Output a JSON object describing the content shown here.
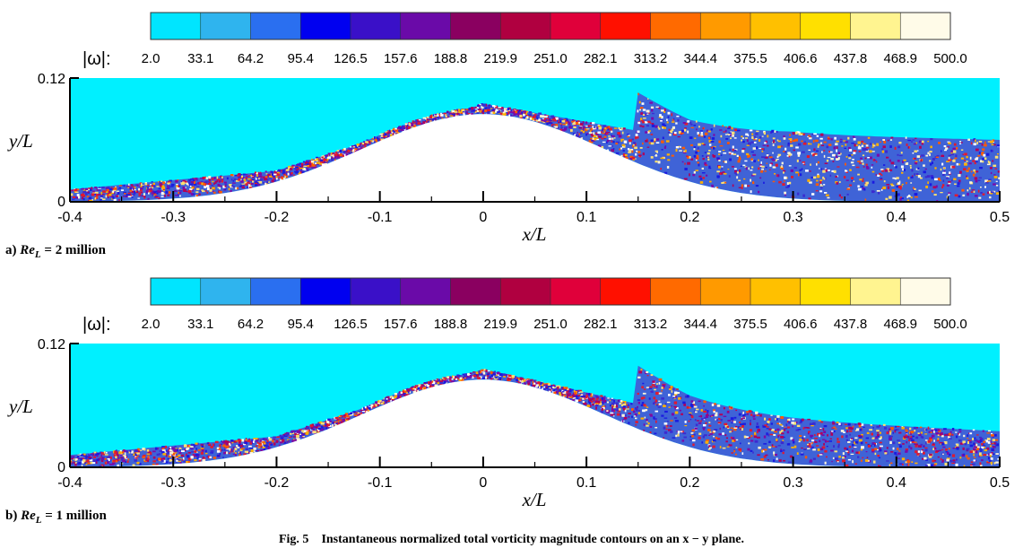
{
  "colorbar": {
    "label": "|ω|:",
    "ticks": [
      "2.0",
      "33.1",
      "64.2",
      "95.4",
      "126.5",
      "157.6",
      "188.8",
      "219.9",
      "251.0",
      "282.1",
      "313.2",
      "344.4",
      "375.5",
      "406.6",
      "437.8",
      "468.9",
      "500.0"
    ],
    "colors": [
      "#00e5ff",
      "#2fb4ee",
      "#2a6ff0",
      "#0000f0",
      "#3a10c8",
      "#6a0aa8",
      "#8a0060",
      "#b00040",
      "#e0003a",
      "#ff1000",
      "#ff6a00",
      "#ff9a00",
      "#ffc000",
      "#ffe000",
      "#fff490",
      "#fffbe8"
    ]
  },
  "caption": {
    "fig_number": "Fig. 5",
    "text": "Instantaneous normalized total vorticity magnitude contours on an x − y plane."
  },
  "chart_data": [
    {
      "type": "heatmap",
      "panel_label": "a)",
      "panel_re_symbol": "Re",
      "panel_re_sub": "L",
      "panel_re_value": "= 2 million",
      "xlabel": "x/L",
      "ylabel": "y/L",
      "xlim": [
        -0.4,
        0.5
      ],
      "ylim": [
        0,
        0.12
      ],
      "x_ticks": [
        "-0.4",
        "-0.3",
        "-0.2",
        "-0.1",
        "0",
        "0.1",
        "0.2",
        "0.3",
        "0.4",
        "0.5"
      ],
      "y_ticks": [
        "0",
        "0.12"
      ],
      "colorbar_label": "|ω|",
      "colorbar_range": [
        2.0,
        500.0
      ],
      "bump": {
        "peak_x": 0.0,
        "peak_y": 0.085
      },
      "turbulent_layer_top": [
        [
          -0.4,
          0.012
        ],
        [
          -0.2,
          0.03
        ],
        [
          0.0,
          0.095
        ],
        [
          0.2,
          0.06
        ],
        [
          0.3,
          0.065
        ],
        [
          0.5,
          0.06
        ]
      ]
    },
    {
      "type": "heatmap",
      "panel_label": "b)",
      "panel_re_symbol": "Re",
      "panel_re_sub": "L",
      "panel_re_value": "= 1 million",
      "xlabel": "x/L",
      "ylabel": "y/L",
      "xlim": [
        -0.4,
        0.5
      ],
      "ylim": [
        0,
        0.12
      ],
      "x_ticks": [
        "-0.4",
        "-0.3",
        "-0.2",
        "-0.1",
        "0",
        "0.1",
        "0.2",
        "0.3",
        "0.4",
        "0.5"
      ],
      "y_ticks": [
        "0",
        "0.12"
      ],
      "colorbar_label": "|ω|",
      "colorbar_range": [
        2.0,
        500.0
      ],
      "bump": {
        "peak_x": 0.0,
        "peak_y": 0.085
      },
      "turbulent_layer_top": [
        [
          -0.4,
          0.012
        ],
        [
          -0.2,
          0.03
        ],
        [
          0.0,
          0.095
        ],
        [
          0.2,
          0.05
        ],
        [
          0.3,
          0.045
        ],
        [
          0.5,
          0.035
        ]
      ]
    }
  ]
}
